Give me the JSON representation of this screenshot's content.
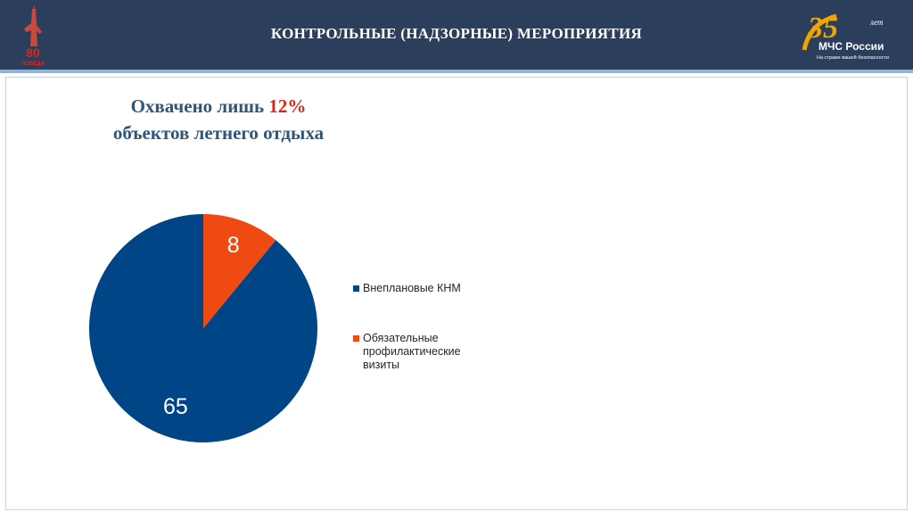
{
  "header": {
    "title": "КОНТРОЛЬНЫЕ (НАДЗОРНЫЕ) МЕРОПРИЯТИЯ",
    "left_logo": {
      "text_top": "80",
      "text_bottom": "ПОБЕДА"
    },
    "right_logo": {
      "number": "35",
      "small": "лет",
      "brand": "МЧС России",
      "tagline": "На страже вашей безопасности"
    }
  },
  "subtitle": {
    "line1_prefix": "Охвачено лишь",
    "line1_pct": "12%",
    "line2": "объектов летнего отдыха"
  },
  "colors": {
    "header_bg": "#2b3e5c",
    "series_blue": "#004585",
    "series_orange": "#f04a13",
    "accent_red": "#d9261c"
  },
  "chart_data": {
    "type": "pie",
    "slices": [
      {
        "label": "Внеплановые КНМ",
        "value": 65,
        "color": "#004585"
      },
      {
        "label": "Обязательные профилактические визиты",
        "value": 8,
        "color": "#f04a13"
      }
    ],
    "data_labels": [
      "65",
      "8"
    ],
    "legend_placement": "right"
  }
}
